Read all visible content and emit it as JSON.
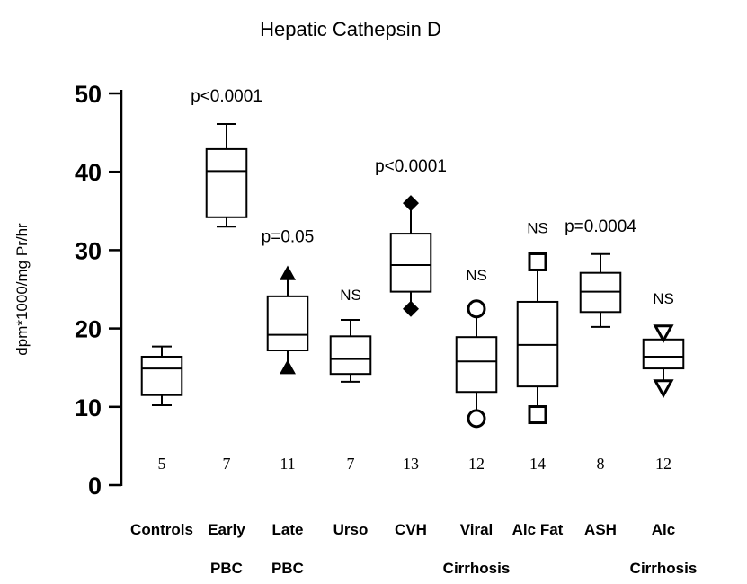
{
  "chart_data": {
    "type": "box",
    "title": "Hepatic Cathepsin D",
    "ylabel": "dpm*1000/mg Pr/hr",
    "xlabel": "",
    "ylim": [
      0,
      50
    ],
    "yticks": [
      0,
      10,
      20,
      30,
      40,
      50
    ],
    "grid": false,
    "groups": [
      {
        "label1": "Controls",
        "label2": "",
        "n": "5",
        "annotation": "",
        "min": 10.2,
        "q1": 11.5,
        "median": 14.9,
        "q3": 16.4,
        "max": 17.7,
        "marker": "none"
      },
      {
        "label1": "Early",
        "label2": "PBC",
        "n": "7",
        "annotation": "p<0.0001",
        "min": 33.0,
        "q1": 34.2,
        "median": 40.1,
        "q3": 42.9,
        "max": 46.1,
        "marker": "none"
      },
      {
        "label1": "Late",
        "label2": "PBC",
        "n": "11",
        "annotation": "p=0.05",
        "min": 15,
        "q1": 17.2,
        "median": 19.2,
        "q3": 24.1,
        "max": 27,
        "marker": "triangle-up-filled"
      },
      {
        "label1": "Urso",
        "label2": "",
        "n": "7",
        "annotation": "NS",
        "min": 13.2,
        "q1": 14.2,
        "median": 16.1,
        "q3": 19.0,
        "max": 21.1,
        "marker": "none"
      },
      {
        "label1": "CVH",
        "label2": "",
        "n": "13",
        "annotation": "p<0.0001",
        "min": 22.5,
        "q1": 24.7,
        "median": 28.1,
        "q3": 32.1,
        "max": 36,
        "marker": "diamond-filled"
      },
      {
        "label1": "Viral",
        "label2": "Cirrhosis",
        "n": "12",
        "annotation": "NS",
        "min": 8.5,
        "q1": 11.9,
        "median": 15.8,
        "q3": 18.9,
        "max": 22.5,
        "marker": "circle-open"
      },
      {
        "label1": "Alc Fat",
        "label2": "",
        "n": "14",
        "annotation": "NS",
        "min": 9,
        "q1": 12.6,
        "median": 17.9,
        "q3": 23.4,
        "max": 28.5,
        "marker": "square-open"
      },
      {
        "label1": "ASH",
        "label2": "",
        "n": "8",
        "annotation": "p=0.0004",
        "min": 20.2,
        "q1": 22.1,
        "median": 24.7,
        "q3": 27.1,
        "max": 29.5,
        "marker": "none"
      },
      {
        "label1": "Alc",
        "label2": "Cirrhosis",
        "n": "12",
        "annotation": "NS",
        "min": 12.5,
        "q1": 14.9,
        "median": 16.4,
        "q3": 18.6,
        "max": 19.5,
        "marker": "triangle-down-open"
      }
    ]
  }
}
